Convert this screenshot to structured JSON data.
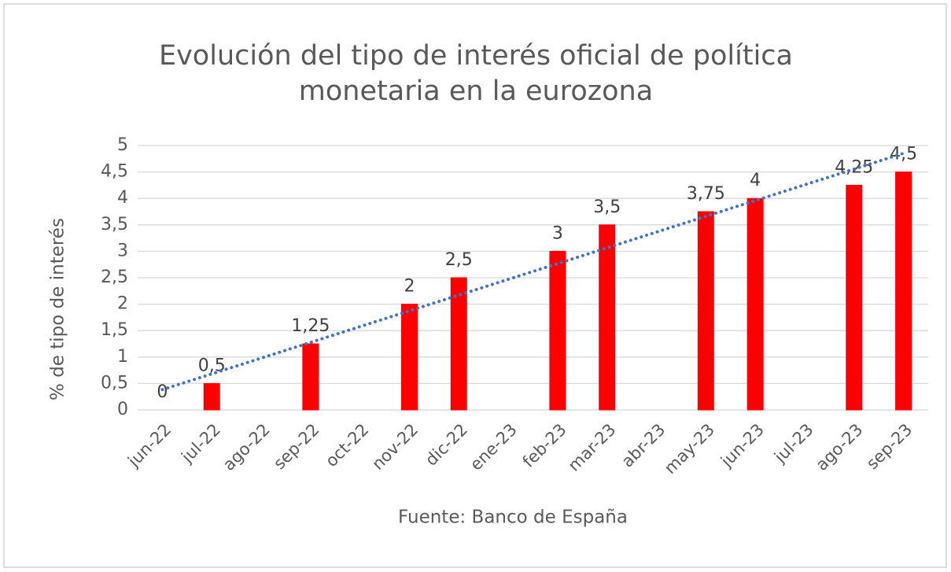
{
  "chart_data": {
    "type": "bar",
    "title": [
      "Evolución del tipo de interés oficial de política",
      "monetaria en la eurozona"
    ],
    "y_label": "% de tipo de interés",
    "source": "Fuente: Banco de España",
    "categories": [
      "jun-22",
      "jul-22",
      "ago-22",
      "sep-22",
      "oct-22",
      "nov-22",
      "dic-22",
      "ene-23",
      "feb-23",
      "mar-23",
      "abr-23",
      "may-23",
      "jun-23",
      "jul-23",
      "ago-23",
      "sep-23"
    ],
    "values": [
      0,
      0.5,
      null,
      1.25,
      null,
      2,
      2.5,
      null,
      3,
      3.5,
      null,
      3.75,
      4,
      null,
      4.25,
      4.5
    ],
    "value_labels": [
      "0",
      "0,5",
      null,
      "1,25",
      null,
      "2",
      "2,5",
      null,
      "3",
      "3,5",
      null,
      "3,75",
      "4",
      null,
      "4,25",
      "4,5"
    ],
    "color": "#ff0000",
    "trendline": {
      "type": "linear",
      "color": "#4472c4"
    },
    "ylim": [
      0,
      5
    ],
    "yticks": [
      0,
      {
        "value": 0.5,
        "label": "0,5"
      },
      1,
      {
        "value": 1.5,
        "label": "1,5"
      },
      2,
      {
        "value": 2.5,
        "label": "2,5"
      },
      3,
      {
        "value": 3.5,
        "label": "3,5"
      },
      4,
      {
        "value": 4.5,
        "label": "4,5"
      },
      5
    ],
    "grid": true
  }
}
